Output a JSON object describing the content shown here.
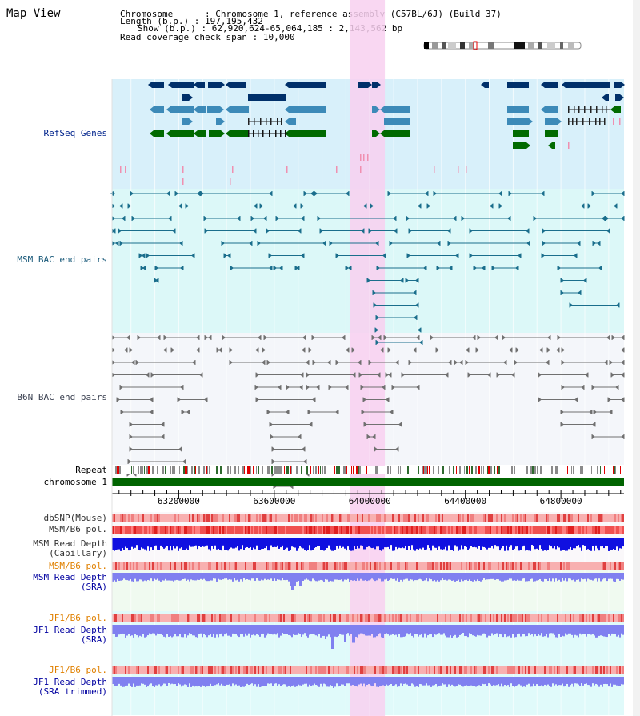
{
  "title": "Map View",
  "info": {
    "chromosome_key": "Chromosome    ",
    "chromosome_val": "Chromosome 1, reference assembly (C57BL/6J) (Build 37)",
    "length_key": "Length (b.p.)",
    "length_val": "197,195,432",
    "show_key": "Show (b.p.)",
    "show_val": "62,920,624-65,064,185 : 2,143,562 bp",
    "coverage_key": "Read coverage check span",
    "coverage_val": "10,000"
  },
  "tracks": {
    "refseq": "RefSeq Genes",
    "msm_bac": "MSM BAC end pairs",
    "b6n_bac": "B6N BAC end pairs",
    "repeat": "Repeat",
    "chromosome": "chromosome 1",
    "dbsnp": "dbSNP(Mouse)",
    "msm_b6_pol_1": "MSM/B6 pol.",
    "msm_depth_cap_1": "MSM Read Depth",
    "msm_depth_cap_2": "(Capillary)",
    "msm_b6_pol_2": "MSM/B6 pol.",
    "msm_depth_sra_1": "MSM Read Depth",
    "msm_depth_sra_2": "(SRA)",
    "jf1_b6_pol_1": "JF1/B6 pol.",
    "jf1_depth_sra_1": "JF1 Read Depth",
    "jf1_depth_sra_2": "(SRA)",
    "jf1_b6_pol_2": "JF1/B6 pol.",
    "jf1_depth_trim_1": "JF1 Read Depth",
    "jf1_depth_trim_2": "(SRA trimmed)"
  },
  "axis": {
    "ticks": [
      "63200000",
      "63600000",
      "64000000",
      "64400000",
      "64800000"
    ],
    "tick_values": [
      63200000,
      63600000,
      64000000,
      64400000,
      64800000
    ],
    "range": [
      62920624,
      65064185
    ]
  },
  "highlight_region": [
    63918000,
    64063000
  ],
  "colors": {
    "refseq_bg": "#d8f0fa",
    "msm_bg": "#dcf8f8",
    "b6n_bg": "#f4f6fa",
    "highlight": "#f8d0f0",
    "gene_dark": "#00306a",
    "gene_mid": "#3c8ab8",
    "gene_green": "#006a00",
    "msm_line": "#1a6e8c",
    "b6n_line": "#707070",
    "chromosome": "#006400",
    "pol_label": "#e08000",
    "depth_label": "#0000a0",
    "depth_dark": "#1010e0",
    "depth_light": "#8080f0"
  }
}
